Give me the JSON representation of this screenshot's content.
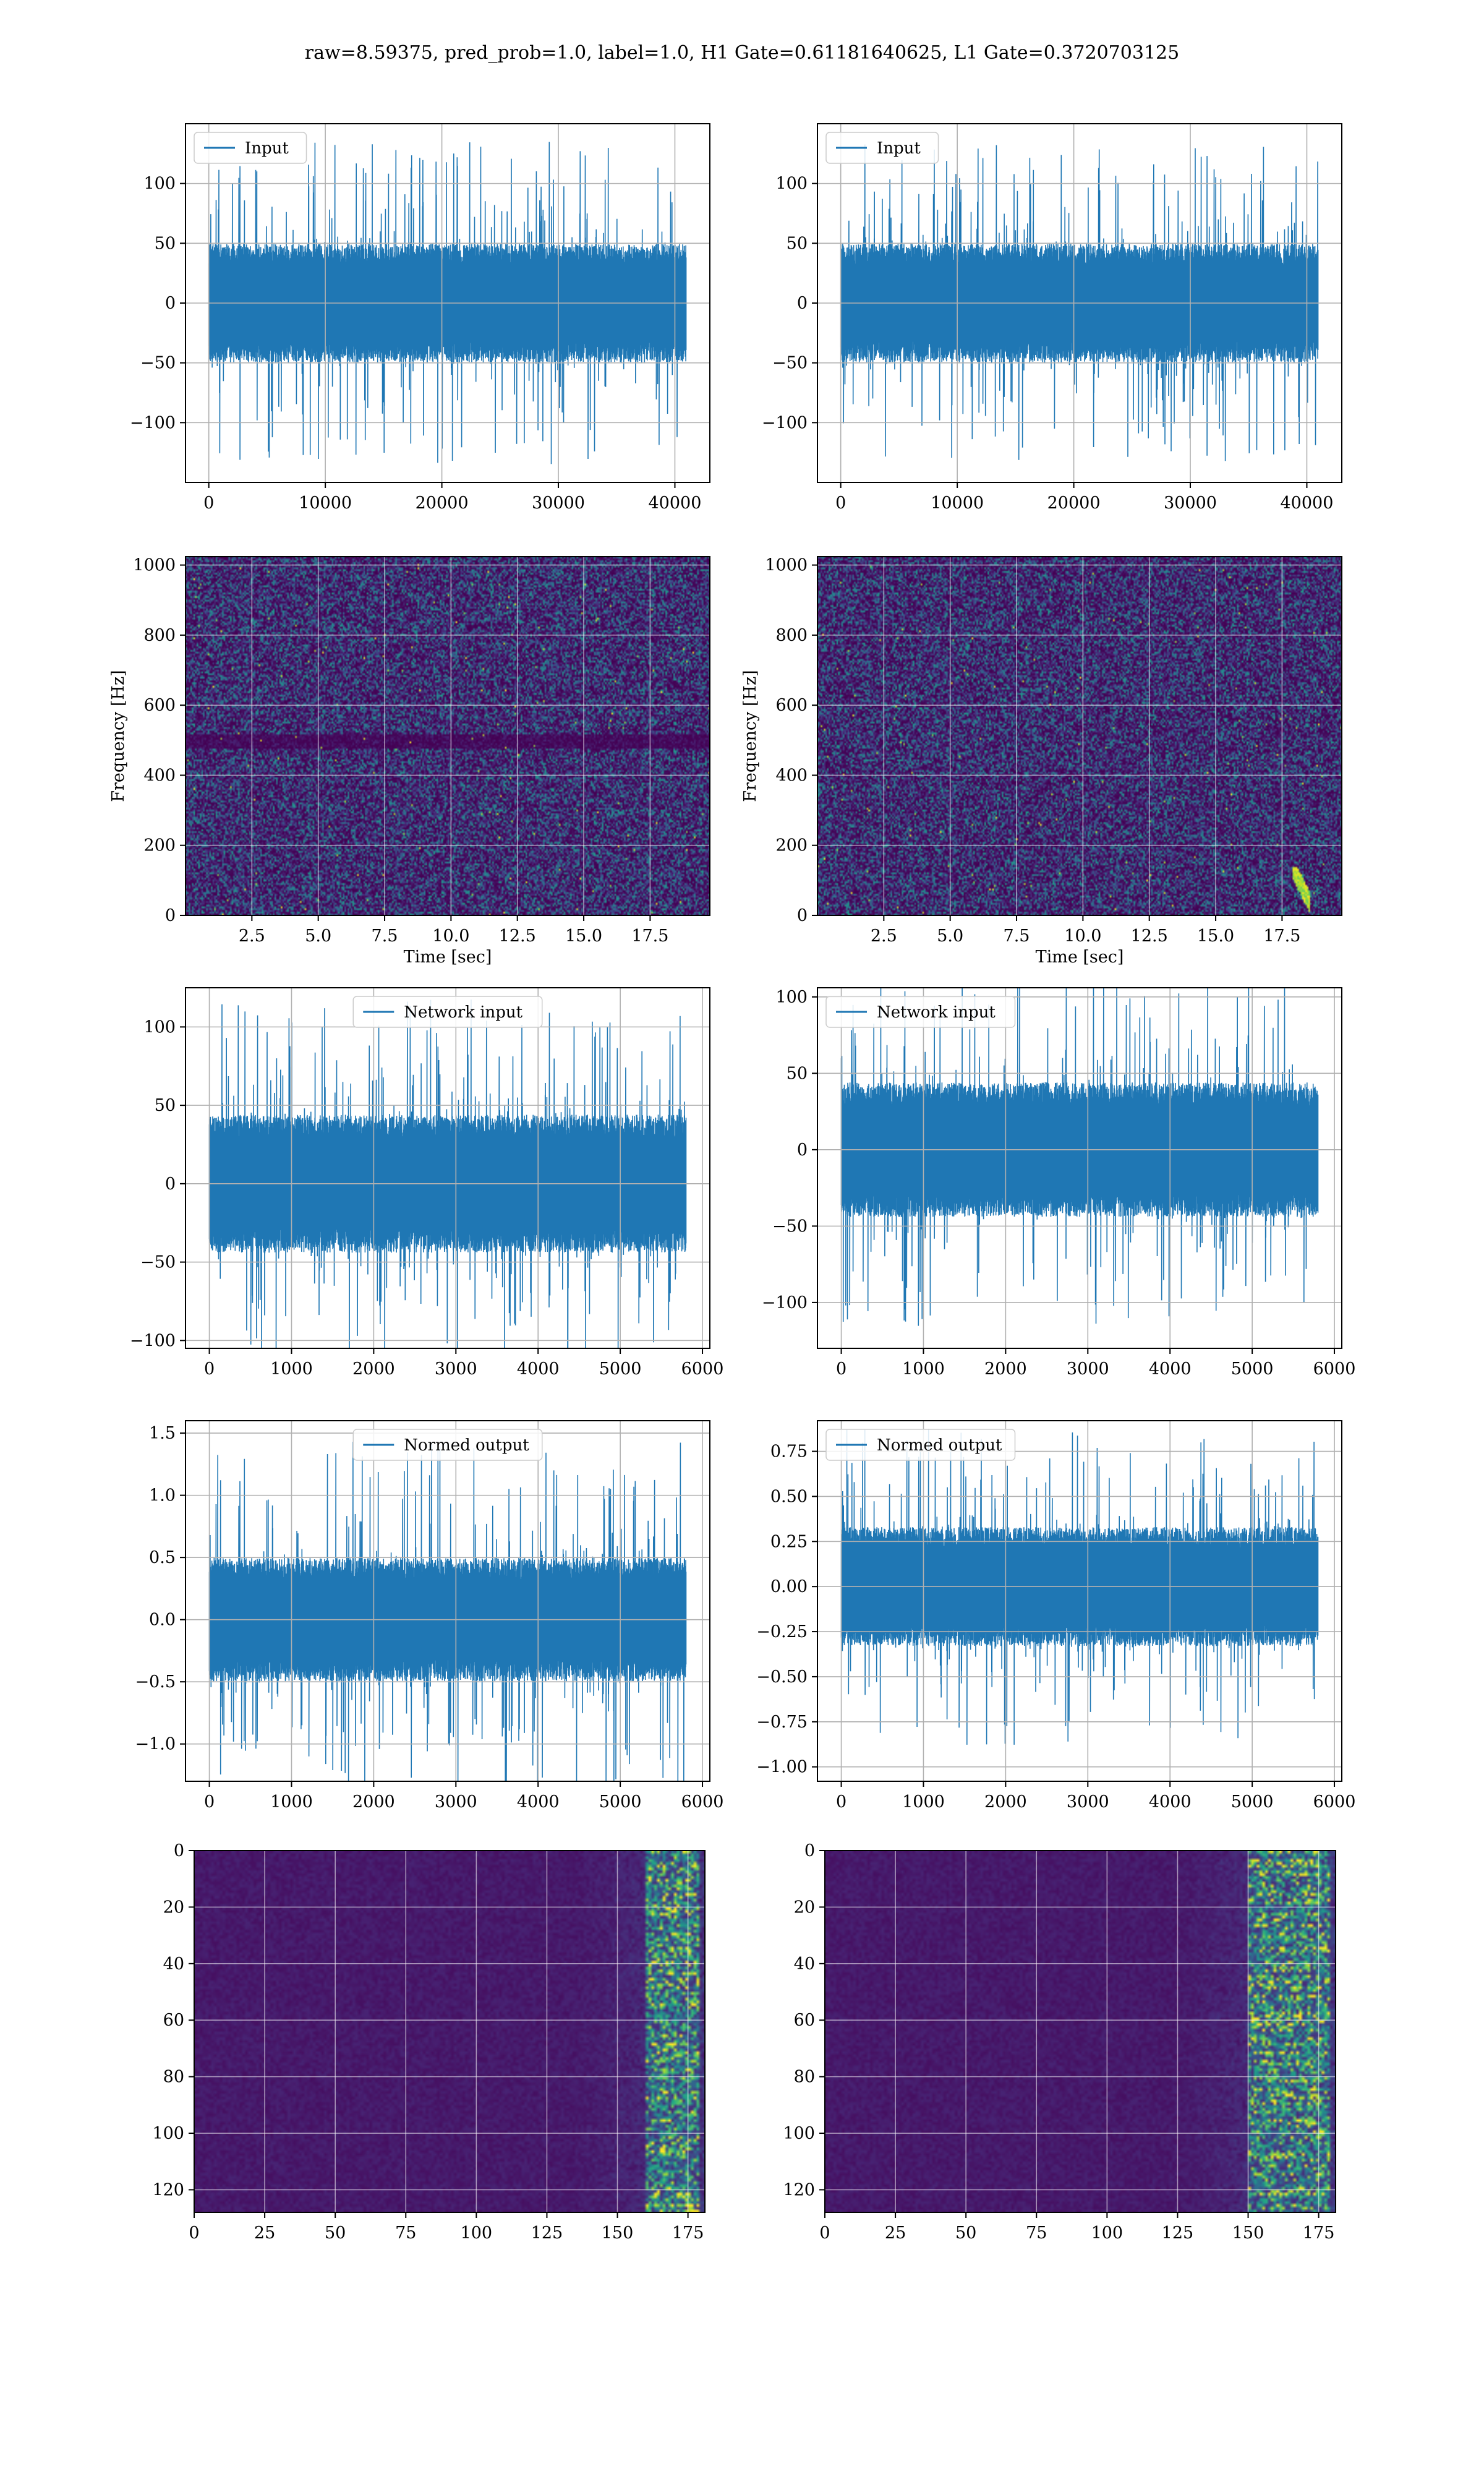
{
  "figure": {
    "title": "raw=8.59375, pred_prob=1.0, label=1.0, H1 Gate=0.61181640625, L1 Gate=0.3720703125"
  },
  "colors": {
    "line": "#1f77b4",
    "grid": "#b0b0b0",
    "viridis_dark": "#440154",
    "viridis_mid": "#21918c",
    "viridis_bright": "#fde725"
  },
  "chart_data": [
    {
      "id": "h1-input",
      "type": "line",
      "series": [
        {
          "name": "Input",
          "x_range": [
            0,
            40960
          ],
          "amplitude_typical": 45,
          "amplitude_peak": 135
        }
      ],
      "legend": "upper-left",
      "xlim": [
        -2000,
        43000
      ],
      "ylim": [
        -150,
        150
      ],
      "xticks": [
        0,
        10000,
        20000,
        30000,
        40000
      ],
      "yticks": [
        -100,
        -50,
        0,
        50,
        100
      ],
      "xlabel": "",
      "ylabel": "",
      "grid": true
    },
    {
      "id": "l1-input",
      "type": "line",
      "series": [
        {
          "name": "Input",
          "x_range": [
            0,
            40960
          ],
          "amplitude_typical": 45,
          "amplitude_peak": 133
        }
      ],
      "legend": "upper-left",
      "xlim": [
        -2000,
        43000
      ],
      "ylim": [
        -150,
        150
      ],
      "xticks": [
        0,
        10000,
        20000,
        30000,
        40000
      ],
      "yticks": [
        -100,
        -50,
        0,
        50,
        100
      ],
      "xlabel": "",
      "ylabel": "",
      "grid": true
    },
    {
      "id": "h1-spectrogram",
      "type": "heatmap",
      "xlim": [
        0,
        19.75
      ],
      "ylim": [
        0,
        1024
      ],
      "xticks": [
        2.5,
        5.0,
        7.5,
        10.0,
        12.5,
        15.0,
        17.5
      ],
      "yticks": [
        0,
        200,
        400,
        600,
        800,
        1000
      ],
      "xlabel": "Time [sec]",
      "ylabel": "Frequency [Hz]",
      "colormap": "viridis",
      "grid": true,
      "notable_features": [
        {
          "kind": "dark-band",
          "frequency": 500
        }
      ]
    },
    {
      "id": "l1-spectrogram",
      "type": "heatmap",
      "xlim": [
        0,
        19.75
      ],
      "ylim": [
        0,
        1024
      ],
      "xticks": [
        2.5,
        5.0,
        7.5,
        10.0,
        12.5,
        15.0,
        17.5
      ],
      "yticks": [
        0,
        200,
        400,
        600,
        800,
        1000
      ],
      "xlabel": "Time [sec]",
      "ylabel": "Frequency [Hz]",
      "colormap": "viridis",
      "grid": true,
      "notable_features": [
        {
          "kind": "bright-chirp",
          "time": 18.2,
          "frequency": 40
        }
      ]
    },
    {
      "id": "h1-network-input",
      "type": "line",
      "series": [
        {
          "name": "Network input",
          "x_range": [
            0,
            5800
          ],
          "amplitude_typical": 40,
          "amplitude_peak": 118
        }
      ],
      "legend": "upper-center",
      "xlim": [
        -290,
        6090
      ],
      "ylim": [
        -105,
        125
      ],
      "xticks": [
        0,
        1000,
        2000,
        3000,
        4000,
        5000,
        6000
      ],
      "yticks": [
        -100,
        -50,
        0,
        50,
        100
      ],
      "xlabel": "",
      "ylabel": "",
      "grid": true
    },
    {
      "id": "l1-network-input",
      "type": "line",
      "series": [
        {
          "name": "Network input",
          "x_range": [
            0,
            5800
          ],
          "amplitude_typical": 40,
          "amplitude_peak": 118
        }
      ],
      "legend": "upper-left",
      "xlim": [
        -290,
        6090
      ],
      "ylim": [
        -130,
        106
      ],
      "xticks": [
        0,
        1000,
        2000,
        3000,
        4000,
        5000,
        6000
      ],
      "yticks": [
        -100,
        -50,
        0,
        50,
        100
      ],
      "xlabel": "",
      "ylabel": "",
      "grid": true
    },
    {
      "id": "h1-normed-output",
      "type": "line",
      "series": [
        {
          "name": "Normed output",
          "x_range": [
            0,
            5800
          ],
          "amplitude_typical": 0.45,
          "amplitude_peak": 1.45
        }
      ],
      "legend": "upper-center",
      "xlim": [
        -290,
        6090
      ],
      "ylim": [
        -1.3,
        1.6
      ],
      "xticks": [
        0,
        1000,
        2000,
        3000,
        4000,
        5000,
        6000
      ],
      "yticks": [
        -1.0,
        -0.5,
        0.0,
        0.5,
        1.0,
        1.5
      ],
      "xlabel": "",
      "ylabel": "",
      "grid": true
    },
    {
      "id": "l1-normed-output",
      "type": "line",
      "series": [
        {
          "name": "Normed output",
          "x_range": [
            0,
            5800
          ],
          "amplitude_typical": 0.3,
          "amplitude_peak": 0.88
        }
      ],
      "legend": "upper-left",
      "xlim": [
        -290,
        6090
      ],
      "ylim": [
        -1.08,
        0.92
      ],
      "xticks": [
        0,
        1000,
        2000,
        3000,
        4000,
        5000,
        6000
      ],
      "yticks": [
        -1.0,
        -0.75,
        -0.5,
        -0.25,
        0.0,
        0.25,
        0.5,
        0.75
      ],
      "xlabel": "",
      "ylabel": "",
      "grid": true
    },
    {
      "id": "h1-feature-map",
      "type": "heatmap",
      "xlim": [
        0,
        181
      ],
      "ylim": [
        128,
        0
      ],
      "xticks": [
        0,
        25,
        50,
        75,
        100,
        125,
        150,
        175
      ],
      "yticks": [
        0,
        20,
        40,
        60,
        80,
        100,
        120
      ],
      "xlabel": "",
      "ylabel": "",
      "colormap": "viridis",
      "grid": true,
      "notable_features": [
        {
          "kind": "bright-columns",
          "x_range": [
            160,
            178
          ]
        }
      ]
    },
    {
      "id": "l1-feature-map",
      "type": "heatmap",
      "xlim": [
        0,
        181
      ],
      "ylim": [
        128,
        0
      ],
      "xticks": [
        0,
        25,
        50,
        75,
        100,
        125,
        150,
        175
      ],
      "yticks": [
        0,
        20,
        40,
        60,
        80,
        100,
        120
      ],
      "xlabel": "",
      "ylabel": "",
      "colormap": "viridis",
      "grid": true,
      "notable_features": [
        {
          "kind": "bright-columns",
          "x_range": [
            150,
            178
          ]
        }
      ]
    }
  ]
}
